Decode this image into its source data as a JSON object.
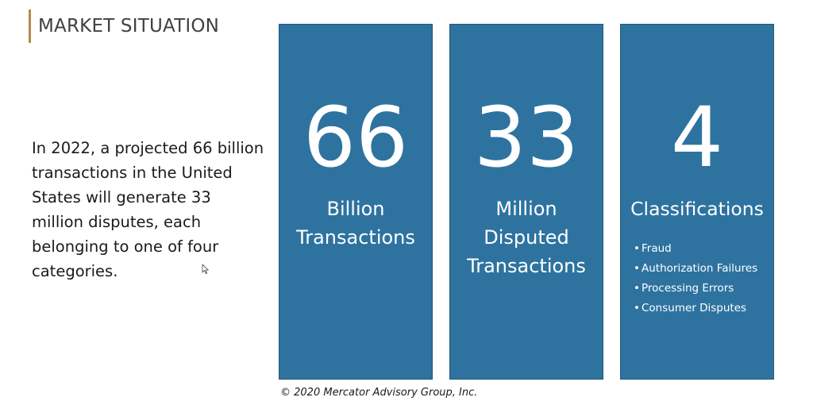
{
  "slide": {
    "title": "MARKET SITUATION",
    "intro_text": "In 2022, a projected 66 billion transactions in the United States will generate 33 million disputes, each belonging to one of four categories.",
    "cards": [
      {
        "number": "66",
        "label_lines": [
          "Billion",
          "Transactions"
        ]
      },
      {
        "number": "33",
        "label_lines": [
          "Million",
          "Disputed",
          "Transactions"
        ]
      },
      {
        "number": "4",
        "label_lines": [
          "Classifications"
        ],
        "bullets": [
          "Fraud",
          "Authorization Failures",
          "Processing Errors",
          "Consumer Disputes"
        ]
      }
    ],
    "footer": "© 2020 Mercator Advisory Group, Inc."
  },
  "colors": {
    "card_fill": "#2e73a0",
    "card_border": "#23587b",
    "accent_bar": "#b38b4d",
    "title_text": "#404040"
  },
  "icons": {
    "cursor": "mouse-pointer-icon"
  }
}
